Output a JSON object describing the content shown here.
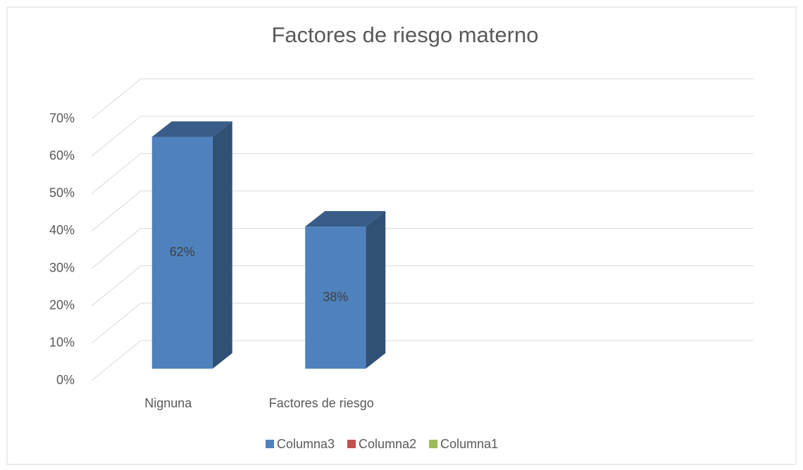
{
  "chart_data": {
    "type": "bar3d",
    "title": "Factores de riesgo materno",
    "categories": [
      "Nignuna",
      "Factores de riesgo",
      null,
      null
    ],
    "series": [
      {
        "name": "Columna3",
        "color": "#4f81bd",
        "values": [
          62,
          38,
          null,
          null
        ],
        "value_labels": [
          "62%",
          "38%",
          null,
          null
        ]
      },
      {
        "name": "Columna2",
        "color": "#c0504d",
        "values": [
          null,
          null,
          null,
          null
        ]
      },
      {
        "name": "Columna1",
        "color": "#9bbb59",
        "values": [
          null,
          null,
          null,
          null
        ]
      }
    ],
    "ylim": [
      0,
      70
    ],
    "yticks": [
      {
        "value": 0,
        "label": "0%"
      },
      {
        "value": 10,
        "label": "10%"
      },
      {
        "value": 20,
        "label": "20%"
      },
      {
        "value": 30,
        "label": "30%"
      },
      {
        "value": 40,
        "label": "40%"
      },
      {
        "value": 50,
        "label": "50%"
      },
      {
        "value": 60,
        "label": "60%"
      },
      {
        "value": 70,
        "label": "70%"
      }
    ],
    "grid": true,
    "legend": "bottom"
  }
}
